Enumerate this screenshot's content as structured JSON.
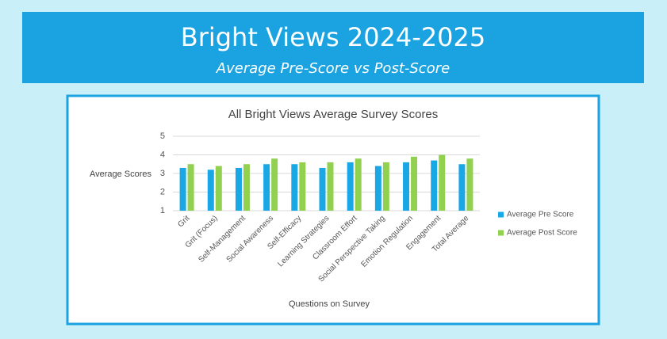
{
  "header": {
    "title": "Bright Views 2024-2025",
    "subtitle": "Average Pre-Score vs Post-Score"
  },
  "chart_data": {
    "type": "bar",
    "title": "All Bright Views Average Survey Scores",
    "x_label": "Questions on Survey",
    "y_label": "Average Scores",
    "categories": [
      "Grit",
      "Grit (Focus)",
      "Self-Management",
      "Social Awareness",
      "Self-Efficacy",
      "Learning Strategies",
      "Classroom Effort",
      "Social Perspective Taking",
      "Emotion Regulation",
      "Engagement",
      "Total Average"
    ],
    "series": [
      {
        "name": "Average Pre Score",
        "color": "#1aa7e6",
        "values": [
          3.3,
          3.2,
          3.3,
          3.5,
          3.5,
          3.3,
          3.6,
          3.4,
          3.6,
          3.7,
          3.5
        ]
      },
      {
        "name": "Average Post Score",
        "color": "#92d050",
        "values": [
          3.5,
          3.4,
          3.5,
          3.8,
          3.6,
          3.6,
          3.8,
          3.6,
          3.9,
          4.0,
          3.8
        ]
      }
    ],
    "ylim": [
      1,
      5
    ],
    "yticks": [
      1,
      2,
      3,
      4,
      5
    ],
    "grid": true,
    "legend": "right"
  }
}
